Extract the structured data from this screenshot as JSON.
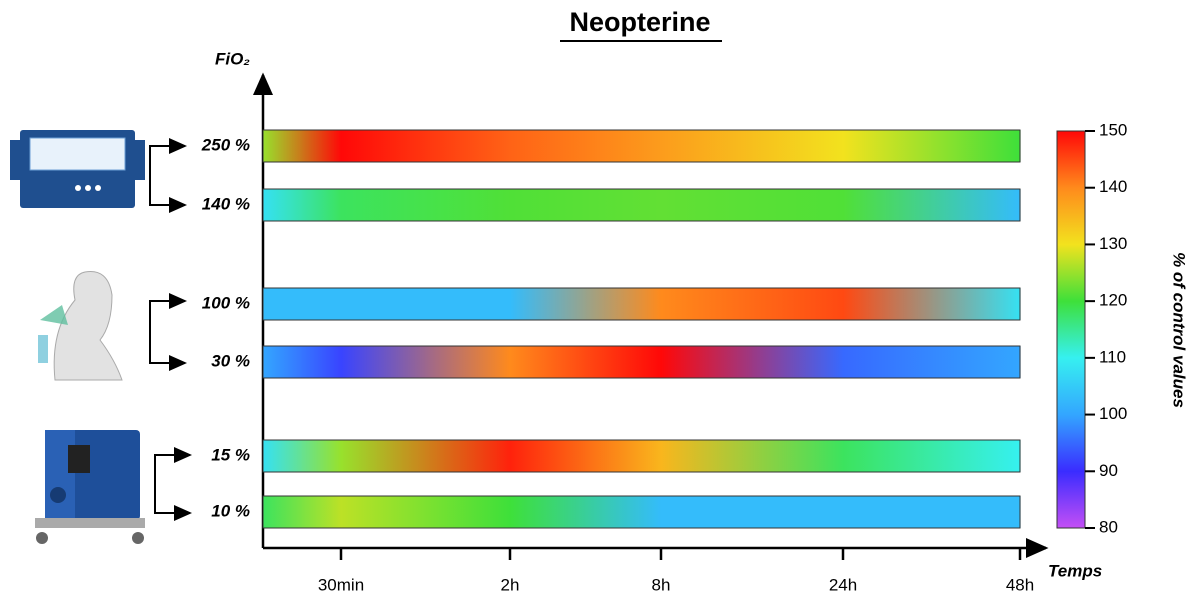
{
  "chart_data": {
    "type": "heatmap-bars",
    "title": "Neopterine",
    "y_label": "FiO₂",
    "x_label": "Temps",
    "colorbar_label": "% of control values",
    "categories": [
      null,
      "30min",
      "2h",
      "8h",
      "24h",
      "48h"
    ],
    "series": [
      {
        "name": "250 %",
        "values": [
          125,
          150,
          143,
          138,
          130,
          120
        ]
      },
      {
        "name": "140 %",
        "values": [
          108,
          118,
          121,
          122,
          121,
          103
        ]
      },
      {
        "name": "100 %",
        "values": [
          103,
          103,
          103,
          140,
          145,
          108
        ]
      },
      {
        "name": "30 %",
        "values": [
          100,
          92,
          140,
          150,
          95,
          100
        ]
      },
      {
        "name": "15 %",
        "values": [
          108,
          125,
          148,
          135,
          118,
          110
        ]
      },
      {
        "name": "10 %",
        "values": [
          118,
          127,
          120,
          103,
          103,
          103
        ]
      }
    ],
    "zlim": [
      80,
      150
    ],
    "zticks": [
      80,
      90,
      100,
      110,
      120,
      130,
      140,
      150
    ],
    "colors": [
      "#c44ff5",
      "#3a2cff",
      "#33a6ff",
      "#36f0f0",
      "#3ee03a",
      "#f2e21e",
      "#ff8a1c",
      "#ff0808"
    ]
  }
}
